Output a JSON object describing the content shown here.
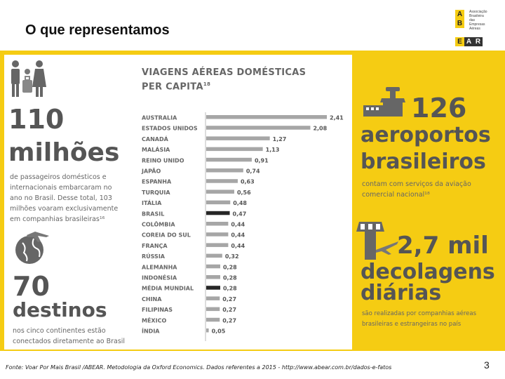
{
  "slide": {
    "title": "O que representamos",
    "source": "Fonte: Voar Por Mais Brasil /ABEAR. Metodologia da Oxford Economics. Dados referentes a 2015 - http://www.abear.com.br/dados-e-fatos",
    "page_number": "3"
  },
  "logo": {
    "letters": [
      "A",
      "B",
      "E",
      "A",
      "R"
    ],
    "text_lines": [
      "Associação",
      "Brasileira",
      "das",
      "Empresas",
      "Aéreas"
    ]
  },
  "left_stats": {
    "passengers_number": "110",
    "passengers_unit": "milhões",
    "passengers_desc": [
      "de passageiros domésticos e",
      "internacionais embarcaram no",
      "ano no Brasil. Desse total, 103",
      "milhões voaram exclusivamente",
      "em companhias brasileiras¹⁶"
    ],
    "destinations_number": "70",
    "destinations_unit": "destinos",
    "destinations_desc": [
      "nos cinco continentes estão",
      "conectados diretamente ao Brasil"
    ]
  },
  "right_stats": {
    "airports_number": "126",
    "airports_unit_1": "aeroportos",
    "airports_unit_2": "brasileiros",
    "airports_desc": [
      "contam com serviços da aviação",
      "comercial nacional¹⁸"
    ],
    "flights_number": "2,7 mil",
    "flights_unit_1": "decolagens",
    "flights_unit_2": "diárias",
    "flights_desc": [
      "são realizadas por companhias aéreas",
      "brasileiras e estrangeiras no país"
    ]
  },
  "colors": {
    "accent_yellow": "#f5cc13",
    "bar_default": "#a6a6a6",
    "bar_highlight": "#262626",
    "text_gray": "#555555"
  },
  "icons": [
    "family-luggage-icon",
    "globe-airplane-icon",
    "airport-terminal-icon",
    "control-tower-icon"
  ],
  "chart_data": {
    "type": "bar",
    "orientation": "horizontal",
    "title_line1": "VIAGENS AÉREAS DOMÉSTICAS",
    "title_line2": "PER CAPITA",
    "title_superscript": "18",
    "categories": [
      "AUSTRALIA",
      "ESTADOS UNIDOS",
      "CANADÁ",
      "MALÁSIA",
      "REINO UNIDO",
      "JAPÃO",
      "ESPANHA",
      "TURQUIA",
      "ITÁLIA",
      "BRASIL",
      "COLÔMBIA",
      "COREIA DO SUL",
      "FRANÇA",
      "RÚSSIA",
      "ALEMANHA",
      "INDONÉSIA",
      "MÉDIA MUNDIAL",
      "CHINA",
      "FILIPINAS",
      "MÉXICO",
      "ÍNDIA"
    ],
    "values": [
      2.41,
      2.08,
      1.27,
      1.13,
      0.91,
      0.74,
      0.63,
      0.56,
      0.48,
      0.47,
      0.44,
      0.44,
      0.44,
      0.32,
      0.28,
      0.28,
      0.28,
      0.27,
      0.27,
      0.27,
      0.05
    ],
    "value_labels": [
      "2,41",
      "2,08",
      "1,27",
      "1,13",
      "0,91",
      "0,74",
      "0,63",
      "0,56",
      "0,48",
      "0,47",
      "0,44",
      "0,44",
      "0,44",
      "0,32",
      "0,28",
      "0,28",
      "0,28",
      "0,27",
      "0,27",
      "0,27",
      "0,05"
    ],
    "highlighted": [
      "BRASIL",
      "MÉDIA MUNDIAL"
    ],
    "xlim": [
      0,
      2.6
    ],
    "xlabel": "",
    "ylabel": "",
    "grid": false
  }
}
